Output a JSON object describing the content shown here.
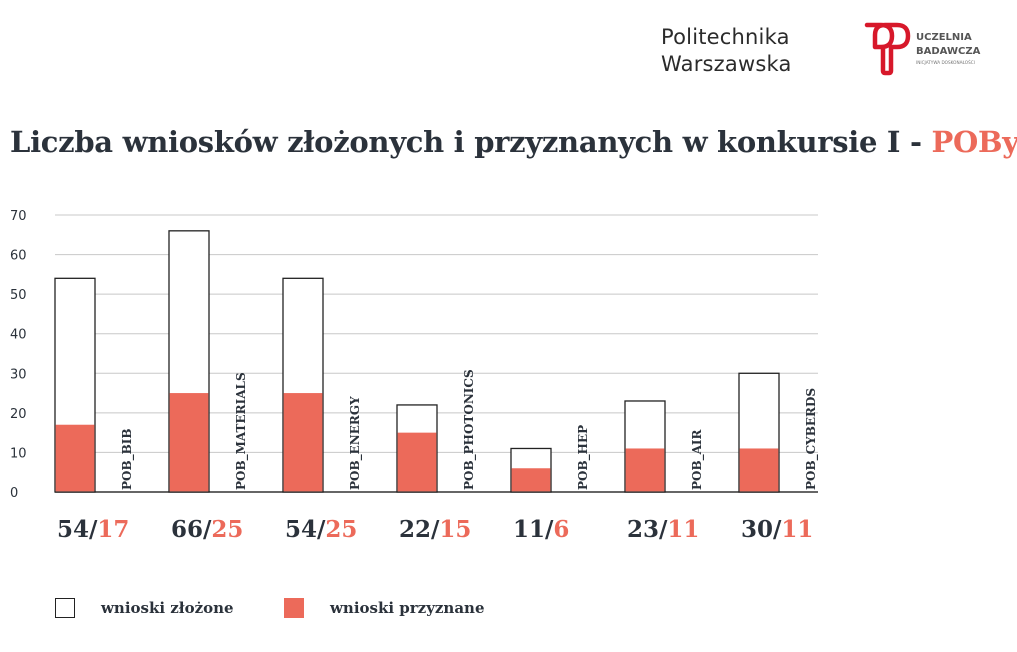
{
  "header": {
    "brand_line1": "Politechnika",
    "brand_line2": "Warszawska",
    "logo_line1": "UCZELNIA",
    "logo_line2": "BADAWCZA",
    "logo_line3": "INICJATYWA DOSKONAŁOŚCI"
  },
  "title": {
    "main": "Liczba wniosków złożonych i przyznanych w konkursie I - ",
    "accent": "POBy"
  },
  "colors": {
    "accent": "#ec6a5a",
    "submitted_fill": "#ffffff",
    "submitted_border": "#222222",
    "text": "#2b323b",
    "grid": "#c8c8c8"
  },
  "legend": {
    "submitted_label": "wnioski złożone",
    "granted_label": "wnioski przyznane"
  },
  "chart_data": {
    "type": "bar",
    "categories": [
      "POB_BIB",
      "POB_MATERIALS",
      "POB_ENERGY",
      "POB_PHOTONICS",
      "POB_HEP",
      "POB_AIR",
      "POB_CYBERDS"
    ],
    "series": [
      {
        "name": "wnioski złożone",
        "values": [
          54,
          66,
          54,
          22,
          11,
          23,
          30
        ]
      },
      {
        "name": "wnioski przyznane",
        "values": [
          17,
          25,
          25,
          15,
          6,
          11,
          11
        ]
      }
    ],
    "ylim": [
      0,
      70
    ],
    "yticks": [
      0,
      10,
      20,
      30,
      40,
      50,
      60,
      70
    ],
    "grid": true,
    "legend_position": "bottom-left",
    "xlabel": "",
    "ylabel": ""
  }
}
